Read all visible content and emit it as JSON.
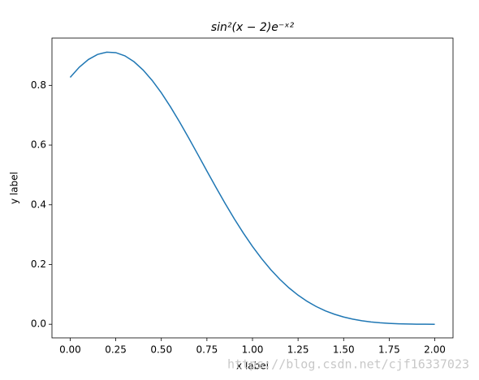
{
  "chart_data": {
    "type": "line",
    "title": "sin²(x − 2)e⁻ˣ²",
    "xlabel": "x label",
    "ylabel": "y label",
    "watermark": "https://blog.csdn.net/cjf16337023",
    "x": [
      0,
      0.05,
      0.1,
      0.15,
      0.2,
      0.25,
      0.3,
      0.35,
      0.4,
      0.45,
      0.5,
      0.55,
      0.6,
      0.65,
      0.7,
      0.75,
      0.8,
      0.85,
      0.9,
      0.95,
      1.0,
      1.05,
      1.1,
      1.15,
      1.2,
      1.25,
      1.3,
      1.35,
      1.4,
      1.45,
      1.5,
      1.55,
      1.6,
      1.65,
      1.7,
      1.75,
      1.8,
      1.85,
      1.9,
      1.95,
      2.0
    ],
    "series": [
      {
        "color": "#1f77b4",
        "values": [
          0.8268,
          0.8608,
          0.8866,
          0.9035,
          0.9112,
          0.9096,
          0.8988,
          0.8792,
          0.8514,
          0.8163,
          0.7749,
          0.7282,
          0.6775,
          0.624,
          0.5688,
          0.5131,
          0.4581,
          0.4045,
          0.3533,
          0.3052,
          0.2605,
          0.2197,
          0.183,
          0.1504,
          0.1219,
          0.0974,
          0.0766,
          0.0592,
          0.0449,
          0.0334,
          0.0242,
          0.0171,
          0.0117,
          0.0077,
          0.0049,
          0.0029,
          0.0015,
          0.0007,
          0.0003,
          0.0001,
          0
        ]
      }
    ],
    "xlim": [
      -0.1,
      2.1
    ],
    "ylim": [
      -0.0456,
      0.9583
    ],
    "xticks": [
      {
        "value": 0,
        "label": "0.00"
      },
      0.25,
      {
        "value": 0.5,
        "label": "0.50"
      },
      0.75,
      {
        "value": 1,
        "label": "1.00"
      },
      1.25,
      {
        "value": 1.5,
        "label": "1.50"
      },
      1.75,
      {
        "value": 2,
        "label": "2.00"
      }
    ],
    "yticks": [
      {
        "value": 0,
        "label": "0.0"
      },
      0.2,
      0.4,
      0.6,
      0.8
    ],
    "grid": false
  }
}
